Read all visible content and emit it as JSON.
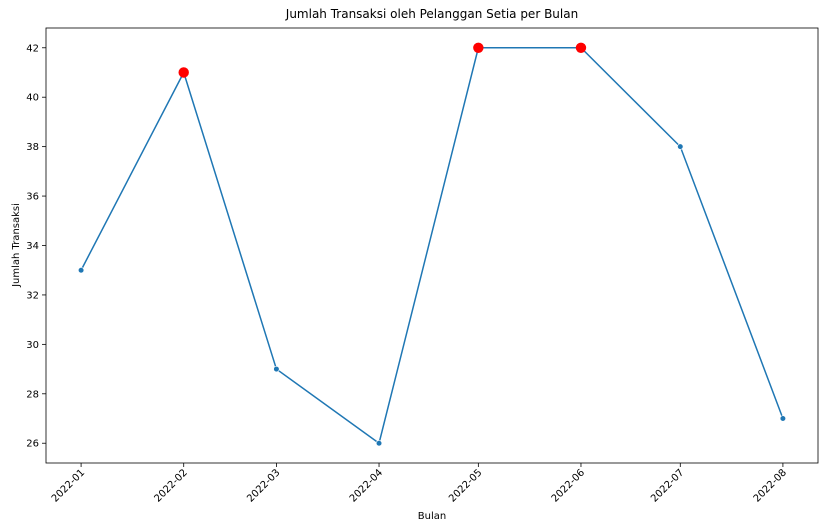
{
  "chart_data": {
    "type": "line",
    "title": "Jumlah Transaksi oleh Pelanggan Setia per Bulan",
    "xlabel": "Bulan",
    "ylabel": "Jumlah Transaksi",
    "categories": [
      "2022-01",
      "2022-02",
      "2022-03",
      "2022-04",
      "2022-05",
      "2022-06",
      "2022-07",
      "2022-08"
    ],
    "x_dates": [
      "2022-01-01",
      "2022-02-01",
      "2022-03-01",
      "2022-04-01",
      "2022-05-01",
      "2022-06-01",
      "2022-07-01",
      "2022-08-01"
    ],
    "values": [
      33,
      41,
      29,
      26,
      42,
      42,
      38,
      27
    ],
    "highlighted": [
      "2022-02",
      "2022-05",
      "2022-06"
    ],
    "yticks": [
      26,
      28,
      30,
      32,
      34,
      36,
      38,
      40,
      42
    ],
    "ylim": [
      25.2,
      42.8
    ],
    "grid": false,
    "line_color": "#1f77b4",
    "highlight_color": "#ff0000"
  }
}
